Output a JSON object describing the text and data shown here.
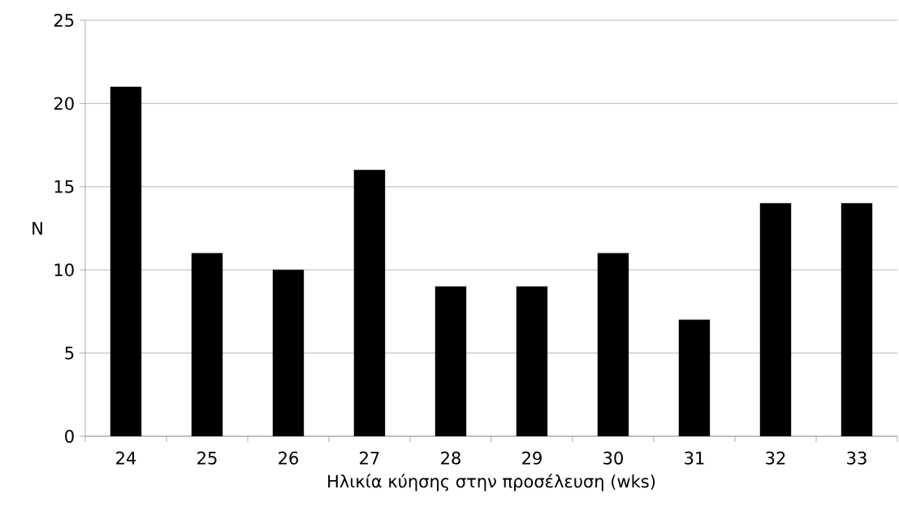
{
  "chart_data": {
    "type": "bar",
    "xlabel": "Ηλικία κύησης στην προσέλευση (wks)",
    "ylabel": "N",
    "categories": [
      "24",
      "25",
      "26",
      "27",
      "28",
      "29",
      "30",
      "31",
      "32",
      "33"
    ],
    "values": [
      21,
      11,
      10,
      16,
      9,
      9,
      11,
      7,
      14,
      14
    ],
    "color": "#000000",
    "ylim": [
      0,
      25
    ],
    "yticks": [
      0,
      5,
      10,
      15,
      20,
      25
    ],
    "grid": "y"
  }
}
